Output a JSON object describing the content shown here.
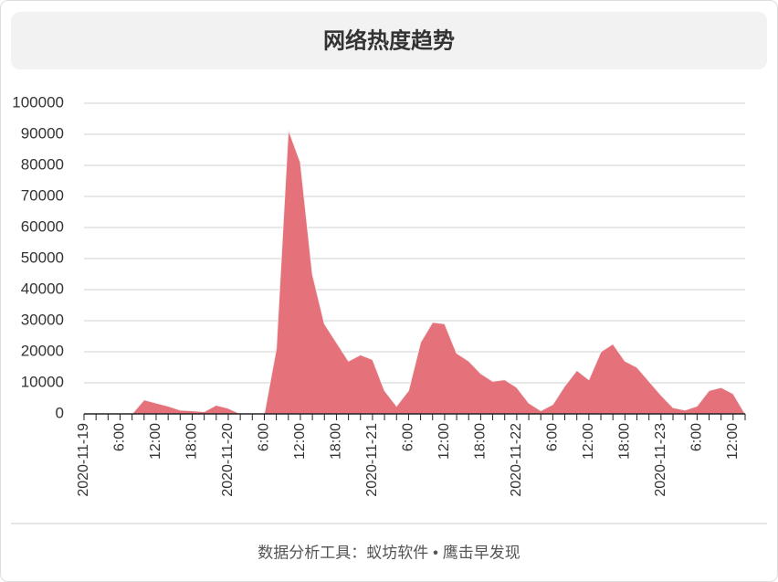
{
  "chart_data": {
    "type": "area",
    "title": "网络热度趋势",
    "categories": [
      "2020-11-19",
      null,
      null,
      "6:00",
      null,
      null,
      "12:00",
      null,
      null,
      "18:00",
      null,
      null,
      "2020-11-20",
      null,
      null,
      "6:00",
      null,
      null,
      "12:00",
      null,
      null,
      "18:00",
      null,
      null,
      "2020-11-21",
      null,
      null,
      "6:00",
      null,
      null,
      "12:00",
      null,
      null,
      "18:00",
      null,
      null,
      "2020-11-22",
      null,
      null,
      "6:00",
      null,
      null,
      "12:00",
      null,
      null,
      "18:00",
      null,
      null,
      "2020-11-23",
      null,
      null,
      "6:00",
      null,
      null,
      "12:00",
      null
    ],
    "values": [
      0,
      0,
      0,
      0,
      0,
      4500,
      3500,
      2500,
      1200,
      1000,
      700,
      2800,
      1800,
      0,
      0,
      0,
      21000,
      91500,
      81000,
      45000,
      29000,
      23000,
      17000,
      19000,
      17500,
      7500,
      2500,
      7500,
      23000,
      29500,
      29000,
      19500,
      17000,
      13000,
      10500,
      11000,
      8500,
      3500,
      1000,
      3000,
      9000,
      14000,
      11000,
      20000,
      22500,
      17000,
      15000,
      10500,
      6000,
      2000,
      1200,
      2500,
      7500,
      8500,
      6500,
      0
    ],
    "color": "#e5717a",
    "ylim": [
      0,
      100000
    ],
    "yticks": [
      0,
      10000,
      20000,
      30000,
      40000,
      50000,
      60000,
      70000,
      80000,
      90000,
      100000
    ],
    "grid": true
  },
  "footer": "数据分析工具：蚁坊软件 • 鹰击早发现"
}
